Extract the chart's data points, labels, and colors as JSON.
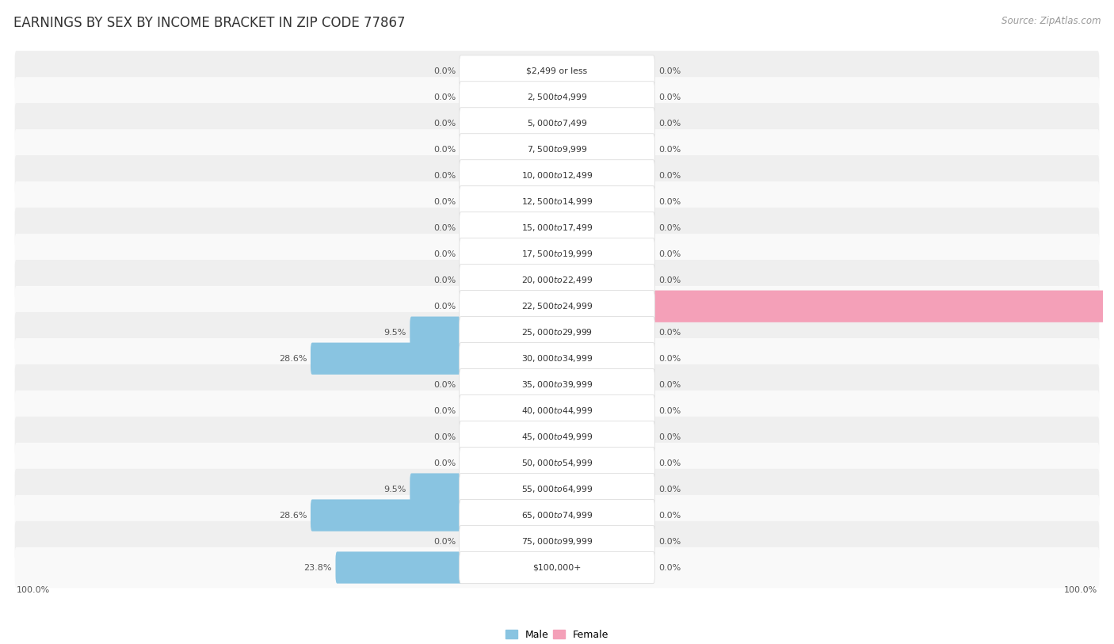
{
  "title": "EARNINGS BY SEX BY INCOME BRACKET IN ZIP CODE 77867",
  "source": "Source: ZipAtlas.com",
  "categories": [
    "$2,499 or less",
    "$2,500 to $4,999",
    "$5,000 to $7,499",
    "$7,500 to $9,999",
    "$10,000 to $12,499",
    "$12,500 to $14,999",
    "$15,000 to $17,499",
    "$17,500 to $19,999",
    "$20,000 to $22,499",
    "$22,500 to $24,999",
    "$25,000 to $29,999",
    "$30,000 to $34,999",
    "$35,000 to $39,999",
    "$40,000 to $44,999",
    "$45,000 to $49,999",
    "$50,000 to $54,999",
    "$55,000 to $64,999",
    "$65,000 to $74,999",
    "$75,000 to $99,999",
    "$100,000+"
  ],
  "male_values": [
    0.0,
    0.0,
    0.0,
    0.0,
    0.0,
    0.0,
    0.0,
    0.0,
    0.0,
    0.0,
    9.5,
    28.6,
    0.0,
    0.0,
    0.0,
    0.0,
    9.5,
    28.6,
    0.0,
    23.8
  ],
  "female_values": [
    0.0,
    0.0,
    0.0,
    0.0,
    0.0,
    0.0,
    0.0,
    0.0,
    0.0,
    100.0,
    0.0,
    0.0,
    0.0,
    0.0,
    0.0,
    0.0,
    0.0,
    0.0,
    0.0,
    0.0
  ],
  "male_color": "#89c4e1",
  "female_color": "#f4a0b8",
  "male_label": "Male",
  "female_label": "Female",
  "row_colors": [
    "#efefef",
    "#f9f9f9"
  ],
  "xlim": 100,
  "title_fontsize": 12,
  "source_fontsize": 8.5,
  "cat_fontsize": 7.8,
  "pct_fontsize": 8,
  "background_color": "#ffffff"
}
